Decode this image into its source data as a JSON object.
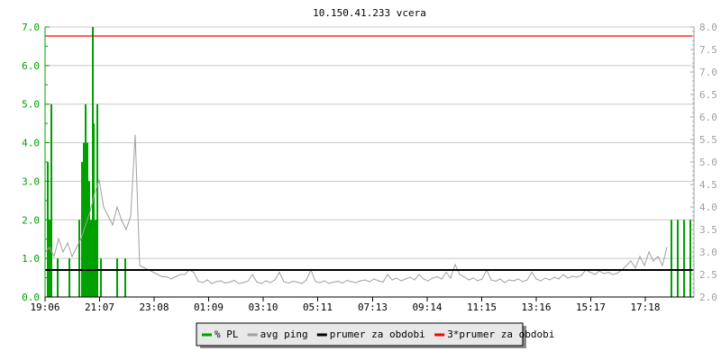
{
  "chart_data": {
    "type": "line",
    "title": "10.150.41.233 vcera",
    "x_ticks": [
      "19:06",
      "21:07",
      "23:08",
      "01:09",
      "03:10",
      "05:11",
      "07:13",
      "09:14",
      "11:15",
      "13:16",
      "15:17",
      "17:18"
    ],
    "x_range": [
      "19:06",
      "19:06"
    ],
    "left_axis": {
      "range": [
        0,
        7
      ],
      "ticks": [
        "0.0",
        "1.0",
        "2.0",
        "3.0",
        "4.0",
        "5.0",
        "6.0",
        "7.0"
      ],
      "color": "#00a000"
    },
    "right_axis": {
      "range": [
        2,
        8
      ],
      "ticks": [
        "2.0",
        "2.5",
        "3.0",
        "3.5",
        "4.0",
        "4.5",
        "5.0",
        "5.5",
        "6.0",
        "6.5",
        "7.0",
        "7.5",
        "8.0"
      ],
      "color": "#a0a0a0"
    },
    "grid": true,
    "legend_placement": "bottom",
    "series": [
      {
        "name": "% PL",
        "axis": "left",
        "style": "impulses",
        "color": "#00a000",
        "points": [
          [
            "19:12",
            3.5
          ],
          [
            "19:16",
            2.0
          ],
          [
            "19:20",
            5.0
          ],
          [
            "19:34",
            1.0
          ],
          [
            "20:00",
            1.0
          ],
          [
            "20:22",
            2.0
          ],
          [
            "20:28",
            3.5
          ],
          [
            "20:32",
            4.0
          ],
          [
            "20:36",
            5.0
          ],
          [
            "20:40",
            4.0
          ],
          [
            "20:44",
            3.0
          ],
          [
            "20:48",
            2.0
          ],
          [
            "20:52",
            7.0
          ],
          [
            "20:54",
            4.5
          ],
          [
            "20:58",
            2.0
          ],
          [
            "21:02",
            5.0
          ],
          [
            "21:10",
            1.0
          ],
          [
            "21:46",
            1.0
          ],
          [
            "22:04",
            1.0
          ],
          [
            "18:16",
            2.0
          ],
          [
            "18:30",
            2.0
          ],
          [
            "18:44",
            2.0
          ],
          [
            "18:58",
            2.0
          ]
        ]
      },
      {
        "name": "avg ping",
        "axis": "right",
        "style": "line",
        "color": "#a0a0a0",
        "start": "19:06",
        "step_minutes": 10,
        "values": [
          3.0,
          3.1,
          2.9,
          3.3,
          3.0,
          3.2,
          2.9,
          3.1,
          3.3,
          3.6,
          3.9,
          4.3,
          4.6,
          4.0,
          3.8,
          3.6,
          4.0,
          3.7,
          3.5,
          3.8,
          5.6,
          2.7,
          2.65,
          2.6,
          2.55,
          2.5,
          2.45,
          2.45,
          2.4,
          2.45,
          2.5,
          2.5,
          2.6,
          2.55,
          2.35,
          2.32,
          2.38,
          2.3,
          2.34,
          2.36,
          2.31,
          2.33,
          2.37,
          2.3,
          2.32,
          2.35,
          2.5,
          2.33,
          2.3,
          2.36,
          2.32,
          2.38,
          2.55,
          2.34,
          2.31,
          2.35,
          2.33,
          2.3,
          2.38,
          2.6,
          2.34,
          2.32,
          2.36,
          2.3,
          2.33,
          2.35,
          2.31,
          2.37,
          2.34,
          2.32,
          2.36,
          2.38,
          2.34,
          2.4,
          2.36,
          2.33,
          2.5,
          2.38,
          2.42,
          2.36,
          2.4,
          2.44,
          2.38,
          2.5,
          2.4,
          2.36,
          2.42,
          2.45,
          2.4,
          2.55,
          2.42,
          2.72,
          2.5,
          2.45,
          2.38,
          2.42,
          2.36,
          2.4,
          2.6,
          2.38,
          2.35,
          2.4,
          2.32,
          2.38,
          2.36,
          2.4,
          2.34,
          2.38,
          2.55,
          2.4,
          2.36,
          2.42,
          2.38,
          2.44,
          2.4,
          2.5,
          2.42,
          2.46,
          2.44,
          2.48,
          2.6,
          2.55,
          2.5,
          2.58,
          2.52,
          2.55,
          2.5,
          2.53,
          2.6,
          2.7,
          2.8,
          2.65,
          2.9,
          2.7,
          3.0,
          2.8,
          2.9,
          2.7,
          3.1
        ]
      },
      {
        "name": "prumer za obdobi",
        "axis": "right",
        "style": "hline",
        "color": "#000000",
        "value": 2.6
      },
      {
        "name": "3*prumer za obdobi",
        "axis": "right",
        "style": "hline",
        "color": "#ff0000",
        "value": 7.8
      }
    ]
  }
}
